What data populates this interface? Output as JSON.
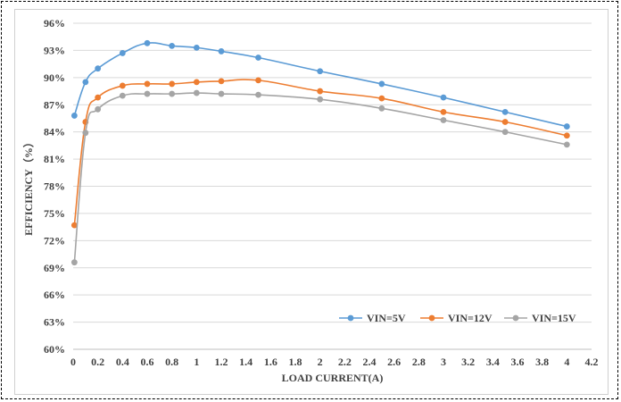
{
  "chart_data": {
    "type": "line",
    "title": "",
    "xlabel": "LOAD CURRENT(A)",
    "ylabel": "EFFICIENCY（%）",
    "xlim": [
      0,
      4.2
    ],
    "ylim": [
      60,
      96
    ],
    "x_ticks": [
      "0",
      "0.2",
      "0.4",
      "0.6",
      "0.8",
      "1",
      "1.2",
      "1.4",
      "1.6",
      "1.8",
      "2",
      "2.2",
      "2.4",
      "2.6",
      "2.8",
      "3",
      "3.2",
      "3.4",
      "3.6",
      "3.8",
      "4",
      "4.2"
    ],
    "y_ticks": [
      "60%",
      "63%",
      "66%",
      "69%",
      "72%",
      "75%",
      "78%",
      "81%",
      "84%",
      "87%",
      "90%",
      "93%",
      "96%"
    ],
    "grid": "horizontal",
    "legend_position": "bottom-right",
    "series": [
      {
        "name": "VIN=5V",
        "color": "#5b9bd5",
        "points": [
          [
            0.01,
            85.8
          ],
          [
            0.1,
            89.5
          ],
          [
            0.2,
            91.0
          ],
          [
            0.4,
            92.7
          ],
          [
            0.6,
            93.8
          ],
          [
            0.8,
            93.5
          ],
          [
            1.0,
            93.3
          ],
          [
            1.2,
            92.9
          ],
          [
            1.5,
            92.2
          ],
          [
            2.0,
            90.7
          ],
          [
            2.5,
            89.3
          ],
          [
            3.0,
            87.8
          ],
          [
            3.5,
            86.2
          ],
          [
            4.0,
            84.6
          ]
        ]
      },
      {
        "name": "VIN=12V",
        "color": "#ed7d31",
        "points": [
          [
            0.01,
            73.7
          ],
          [
            0.1,
            85.1
          ],
          [
            0.2,
            87.8
          ],
          [
            0.4,
            89.1
          ],
          [
            0.6,
            89.3
          ],
          [
            0.8,
            89.3
          ],
          [
            1.0,
            89.5
          ],
          [
            1.2,
            89.6
          ],
          [
            1.5,
            89.7
          ],
          [
            2.0,
            88.5
          ],
          [
            2.5,
            87.7
          ],
          [
            3.0,
            86.2
          ],
          [
            3.5,
            85.1
          ],
          [
            4.0,
            83.6
          ]
        ]
      },
      {
        "name": "VIN=15V",
        "color": "#a5a5a5",
        "points": [
          [
            0.01,
            69.6
          ],
          [
            0.1,
            83.9
          ],
          [
            0.2,
            86.5
          ],
          [
            0.4,
            88.0
          ],
          [
            0.6,
            88.2
          ],
          [
            0.8,
            88.2
          ],
          [
            1.0,
            88.3
          ],
          [
            1.2,
            88.2
          ],
          [
            1.5,
            88.1
          ],
          [
            2.0,
            87.6
          ],
          [
            2.5,
            86.6
          ],
          [
            3.0,
            85.3
          ],
          [
            3.5,
            84.0
          ],
          [
            4.0,
            82.6
          ]
        ]
      }
    ]
  }
}
